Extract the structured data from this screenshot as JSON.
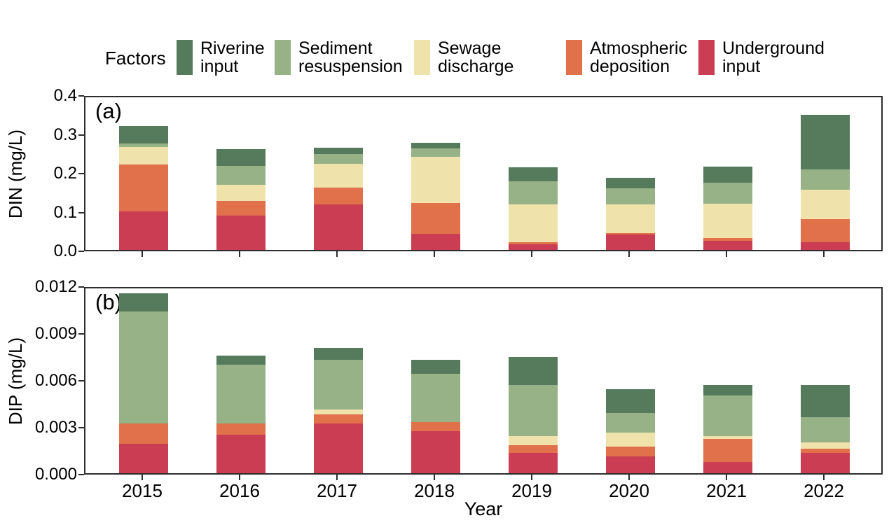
{
  "figure": {
    "legend_title": "Factors",
    "xlabel": "Year",
    "axis_color": "#2d2d2d",
    "legend": [
      {
        "line1": "Riverine",
        "line2": "input",
        "color": "#567B5C"
      },
      {
        "line1": "Sediment",
        "line2": "resuspension",
        "color": "#96B286"
      },
      {
        "line1": "Sewage",
        "line2": "discharge",
        "color": "#F0E2AB"
      },
      {
        "line1": "Atmospheric",
        "line2": "deposition",
        "color": "#E0714A"
      },
      {
        "line1": "Underground",
        "line2": "input",
        "color": "#CA3D52"
      }
    ]
  },
  "chart_data": [
    {
      "type": "bar",
      "stacked": true,
      "panel_label": "(a)",
      "ylabel": "DIN (mg/L)",
      "xlabel": "Year",
      "categories": [
        "2015",
        "2016",
        "2017",
        "2018",
        "2019",
        "2020",
        "2021",
        "2022"
      ],
      "ylim": [
        0,
        0.4
      ],
      "yticks": [
        "0.4",
        "0.3",
        "0.2",
        "0.1",
        "0.0"
      ],
      "grid": false,
      "legend_position": "top",
      "series": [
        {
          "name": "Underground input",
          "color": "#CA3D52",
          "values": [
            0.1,
            0.089,
            0.118,
            0.042,
            0.015,
            0.04,
            0.023,
            0.02
          ]
        },
        {
          "name": "Atmospheric deposition",
          "color": "#E0714A",
          "values": [
            0.122,
            0.038,
            0.043,
            0.079,
            0.005,
            0.004,
            0.008,
            0.06
          ]
        },
        {
          "name": "Sewage discharge",
          "color": "#F0E2AB",
          "values": [
            0.045,
            0.042,
            0.062,
            0.121,
            0.098,
            0.074,
            0.089,
            0.076
          ]
        },
        {
          "name": "Sediment resuspension",
          "color": "#96B286",
          "values": [
            0.01,
            0.05,
            0.026,
            0.021,
            0.061,
            0.042,
            0.055,
            0.053
          ]
        },
        {
          "name": "Riverine input",
          "color": "#567B5C",
          "values": [
            0.045,
            0.042,
            0.016,
            0.015,
            0.036,
            0.028,
            0.042,
            0.142
          ]
        }
      ]
    },
    {
      "type": "bar",
      "stacked": true,
      "panel_label": "(b)",
      "ylabel": "DIP (mg/L)",
      "xlabel": "Year",
      "categories": [
        "2015",
        "2016",
        "2017",
        "2018",
        "2019",
        "2020",
        "2021",
        "2022"
      ],
      "ylim": [
        0,
        0.012
      ],
      "yticks": [
        "0.012",
        "0.009",
        "0.006",
        "0.003",
        "0.000"
      ],
      "grid": false,
      "legend_position": "top",
      "series": [
        {
          "name": "Underground input",
          "color": "#CA3D52",
          "values": [
            0.0019,
            0.0025,
            0.0032,
            0.0027,
            0.0013,
            0.0011,
            0.0007,
            0.0013
          ]
        },
        {
          "name": "Atmospheric deposition",
          "color": "#E0714A",
          "values": [
            0.0013,
            0.0007,
            0.0006,
            0.0006,
            0.0005,
            0.0006,
            0.0015,
            0.0003
          ]
        },
        {
          "name": "Sewage discharge",
          "color": "#F0E2AB",
          "values": [
            0.0,
            0.0,
            0.0003,
            0.0,
            0.0006,
            0.0009,
            0.0002,
            0.0004
          ]
        },
        {
          "name": "Sediment resuspension",
          "color": "#96B286",
          "values": [
            0.0072,
            0.0038,
            0.0032,
            0.0031,
            0.0033,
            0.0013,
            0.0026,
            0.0016
          ]
        },
        {
          "name": "Riverine input",
          "color": "#567B5C",
          "values": [
            0.0012,
            0.0006,
            0.0008,
            0.0009,
            0.0018,
            0.0015,
            0.0007,
            0.0021
          ]
        }
      ]
    }
  ]
}
